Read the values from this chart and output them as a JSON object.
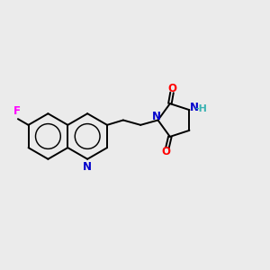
{
  "background_color": "#ebebeb",
  "bond_color": "#000000",
  "atom_colors": {
    "F": "#ff00ff",
    "N_pyridine": "#0000cc",
    "N_imid": "#0000cc",
    "O": "#ff0000",
    "NH": "#3cb3b3"
  },
  "figsize": [
    3.0,
    3.0
  ],
  "dpi": 100,
  "xlim": [
    0,
    10
  ],
  "ylim": [
    2,
    8
  ]
}
